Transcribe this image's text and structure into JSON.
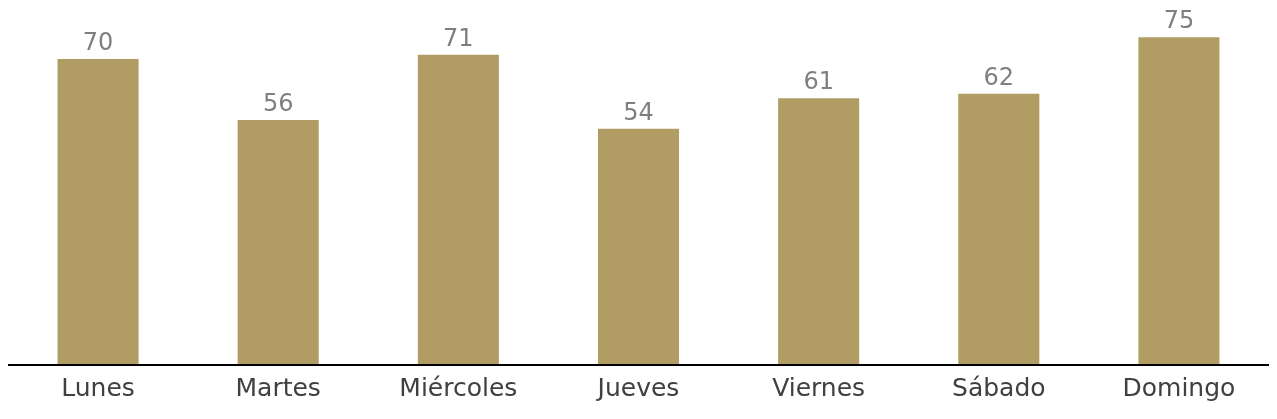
{
  "chart_data": {
    "type": "bar",
    "categories": [
      "Lunes",
      "Martes",
      "Miércoles",
      "Jueves",
      "Viernes",
      "Sábado",
      "Domingo"
    ],
    "values": [
      70,
      56,
      71,
      54,
      61,
      62,
      75
    ],
    "color": "#b19d63",
    "data_labels": true,
    "grid": false,
    "legend": false,
    "tick_labels": "x"
  }
}
